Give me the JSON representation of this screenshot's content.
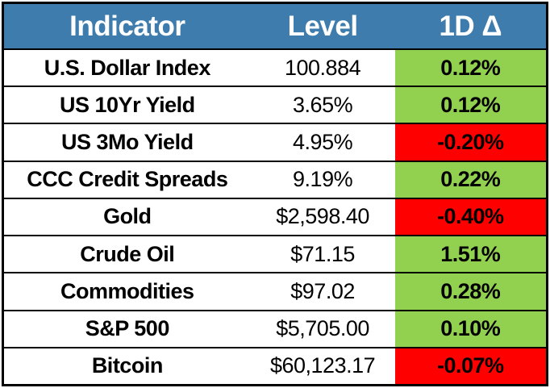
{
  "chart_data": {
    "type": "table",
    "columns": [
      "Indicator",
      "Level",
      "1D Δ"
    ],
    "rows": [
      {
        "indicator": "U.S. Dollar Index",
        "level": "100.884",
        "delta_1d": "0.12%",
        "delta_sign": "positive"
      },
      {
        "indicator": "US 10Yr Yield",
        "level": "3.65%",
        "delta_1d": "0.12%",
        "delta_sign": "positive"
      },
      {
        "indicator": "US 3Mo Yield",
        "level": "4.95%",
        "delta_1d": "-0.20%",
        "delta_sign": "negative"
      },
      {
        "indicator": "CCC Credit Spreads",
        "level": "9.19%",
        "delta_1d": "0.22%",
        "delta_sign": "positive"
      },
      {
        "indicator": "Gold",
        "level": "$2,598.40",
        "delta_1d": "-0.40%",
        "delta_sign": "negative"
      },
      {
        "indicator": "Crude Oil",
        "level": "$71.15",
        "delta_1d": "1.51%",
        "delta_sign": "positive"
      },
      {
        "indicator": "Commodities",
        "level": "$97.02",
        "delta_1d": "0.28%",
        "delta_sign": "positive"
      },
      {
        "indicator": "S&P 500",
        "level": "$5,705.00",
        "delta_1d": "0.10%",
        "delta_sign": "positive"
      },
      {
        "indicator": "Bitcoin",
        "level": "$60,123.17",
        "delta_1d": "-0.07%",
        "delta_sign": "negative"
      }
    ]
  },
  "colors": {
    "header_bg": "#3E7CAD",
    "header_text": "#FFFFFF",
    "positive_bg": "#92D050",
    "negative_bg": "#FF0000",
    "text": "#000000",
    "border": "#000000"
  }
}
